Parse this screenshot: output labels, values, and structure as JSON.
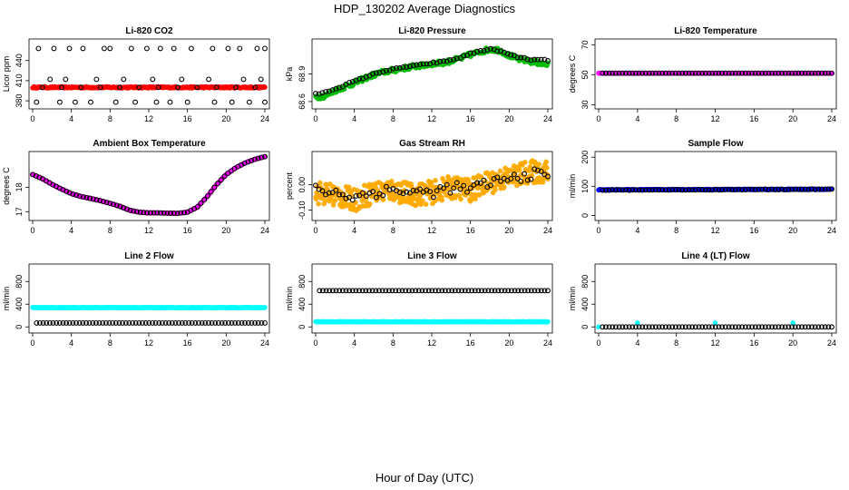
{
  "title": "HDP_130202  Average Diagnostics",
  "xlabel": "Hour of Day (UTC)",
  "chart_data": [
    {
      "type": "scatter",
      "title": "Li-820 CO2",
      "ylabel": "Licor ppm",
      "xlim": [
        0,
        24
      ],
      "xticks": [
        0,
        4,
        8,
        12,
        16,
        20,
        24
      ],
      "ylim": [
        372,
        468
      ],
      "yticks": [
        380,
        410,
        440
      ],
      "series": [
        {
          "color": "#ff0000",
          "filled": true,
          "pattern": "flat",
          "x": [
            0,
            24
          ],
          "y": [
            400,
            400
          ],
          "noise": 1
        },
        {
          "color": "#000000",
          "filled": false,
          "pattern": "scatter-levels",
          "x": [
            0.6,
            2.2,
            3.8,
            5.2,
            7.4,
            8.0,
            10.2,
            11.8,
            13.2,
            14.6,
            16.4,
            18.6,
            20.2,
            21.4,
            23.2,
            24.0,
            1.0,
            3.0,
            5.0,
            7.0,
            9.0,
            11.0,
            13.0,
            15.0,
            17.0,
            19.0,
            21.0,
            23.0,
            1.8,
            3.4,
            6.6,
            9.4,
            12.4,
            15.4,
            18.2,
            21.8,
            23.6,
            0.4,
            2.8,
            4.4,
            6.0,
            8.6,
            10.6,
            12.8,
            14.2,
            16.0,
            18.8,
            20.6,
            22.4,
            24.0
          ],
          "y": [
            458,
            458,
            458,
            458,
            458,
            458,
            458,
            458,
            458,
            458,
            458,
            458,
            458,
            458,
            458,
            458,
            400,
            400,
            400,
            400,
            400,
            400,
            400,
            400,
            400,
            400,
            400,
            400,
            412,
            412,
            412,
            412,
            412,
            412,
            412,
            412,
            412,
            378,
            378,
            378,
            378,
            378,
            378,
            378,
            378,
            378,
            378,
            378,
            378,
            378
          ],
          "noise": 0
        }
      ]
    },
    {
      "type": "scatter",
      "title": "Li-820 Pressure",
      "ylabel": "kPa",
      "xlim": [
        0,
        24
      ],
      "xticks": [
        0,
        4,
        8,
        12,
        16,
        20,
        24
      ],
      "ylim": [
        68.55,
        69.25
      ],
      "yticks": [
        68.6,
        68.9
      ],
      "series": [
        {
          "color": "#00bb00",
          "filled": true,
          "pattern": "curve",
          "x": [
            0,
            1,
            2,
            3,
            4,
            5,
            6,
            7,
            8,
            9,
            10,
            11,
            12,
            13,
            14,
            15,
            16,
            17,
            18,
            19,
            20,
            21,
            22,
            23,
            24
          ],
          "y": [
            68.65,
            68.66,
            68.72,
            68.76,
            68.8,
            68.85,
            68.89,
            68.92,
            68.94,
            68.96,
            68.98,
            68.99,
            69.01,
            69.02,
            69.04,
            69.07,
            69.11,
            69.14,
            69.17,
            69.16,
            69.1,
            69.06,
            69.04,
            69.02,
            69.0
          ],
          "noise": 0.025
        },
        {
          "color": "#000000",
          "filled": false,
          "pattern": "curve",
          "x": [
            0,
            1,
            2,
            3,
            4,
            5,
            6,
            7,
            8,
            9,
            10,
            11,
            12,
            13,
            14,
            15,
            16,
            17,
            18,
            19,
            20,
            21,
            22,
            23,
            24
          ],
          "y": [
            68.68,
            68.7,
            68.74,
            68.78,
            68.82,
            68.86,
            68.9,
            68.93,
            68.95,
            68.97,
            68.99,
            69.0,
            69.02,
            69.03,
            69.05,
            69.08,
            69.12,
            69.15,
            69.17,
            69.15,
            69.11,
            69.08,
            69.06,
            69.05,
            69.05
          ],
          "noise": 0.008
        }
      ]
    },
    {
      "type": "scatter",
      "title": "Li-820 Temperature",
      "ylabel": "degrees C",
      "xlim": [
        0,
        24
      ],
      "xticks": [
        0,
        4,
        8,
        12,
        16,
        20,
        24
      ],
      "ylim": [
        29,
        72
      ],
      "yticks": [
        30,
        50,
        70
      ],
      "series": [
        {
          "color": "#ff00ff",
          "filled": true,
          "pattern": "flat",
          "x": [
            0,
            24
          ],
          "y": [
            51,
            51
          ],
          "noise": 0
        },
        {
          "color": "#000000",
          "filled": false,
          "pattern": "flat",
          "x": [
            0.4,
            24
          ],
          "y": [
            51,
            51
          ],
          "noise": 0
        }
      ]
    },
    {
      "type": "scatter",
      "title": "Ambient Box Temperature",
      "ylabel": "degrees C",
      "xlim": [
        0,
        24
      ],
      "xticks": [
        0,
        4,
        8,
        12,
        16,
        20,
        24
      ],
      "ylim": [
        16.75,
        19.35
      ],
      "yticks": [
        17.0,
        18.0
      ],
      "series": [
        {
          "color": "#ff00ff",
          "filled": true,
          "pattern": "curve",
          "x": [
            0,
            1,
            2,
            3,
            4,
            5,
            6,
            7,
            8,
            9,
            10,
            11,
            12,
            13,
            14,
            15,
            16,
            17,
            18,
            19,
            20,
            21,
            22,
            23,
            24
          ],
          "y": [
            18.52,
            18.35,
            18.12,
            17.92,
            17.74,
            17.62,
            17.54,
            17.45,
            17.34,
            17.22,
            17.06,
            16.98,
            16.95,
            16.95,
            16.94,
            16.93,
            16.98,
            17.18,
            17.6,
            18.1,
            18.52,
            18.8,
            19.0,
            19.15,
            19.25
          ],
          "noise": 0
        },
        {
          "color": "#000000",
          "filled": false,
          "pattern": "curve",
          "x": [
            0,
            1,
            2,
            3,
            4,
            5,
            6,
            7,
            8,
            9,
            10,
            11,
            12,
            13,
            14,
            15,
            16,
            17,
            18,
            19,
            20,
            21,
            22,
            23,
            24
          ],
          "y": [
            18.52,
            18.35,
            18.12,
            17.92,
            17.74,
            17.62,
            17.54,
            17.45,
            17.34,
            17.22,
            17.06,
            16.98,
            16.95,
            16.95,
            16.94,
            16.93,
            16.98,
            17.18,
            17.6,
            18.1,
            18.52,
            18.8,
            19.0,
            19.15,
            19.25
          ],
          "noise": 0
        }
      ]
    },
    {
      "type": "scatter",
      "title": "Gas Stream RH",
      "ylabel": "percent",
      "xlim": [
        0,
        24
      ],
      "xticks": [
        0,
        4,
        8,
        12,
        16,
        20,
        24
      ],
      "ylim": [
        -0.13,
        0.12
      ],
      "yticks": [
        -0.1,
        0.0
      ],
      "series": [
        {
          "color": "#ffaa00",
          "filled": true,
          "pattern": "curve",
          "x": [
            0,
            2,
            4,
            6,
            8,
            10,
            12,
            14,
            16,
            18,
            20,
            22,
            24
          ],
          "y": [
            -0.03,
            -0.04,
            -0.06,
            -0.03,
            -0.02,
            -0.04,
            -0.03,
            -0.01,
            -0.02,
            0.01,
            0.03,
            0.05,
            0.05
          ],
          "noise": 0.045
        },
        {
          "color": "#000000",
          "filled": false,
          "pattern": "curve",
          "x": [
            0,
            2,
            4,
            6,
            8,
            10,
            12,
            14,
            16,
            18,
            20,
            22,
            24
          ],
          "y": [
            -0.02,
            -0.03,
            -0.05,
            -0.03,
            -0.02,
            -0.03,
            -0.03,
            -0.01,
            -0.02,
            0.01,
            0.02,
            0.04,
            0.04
          ],
          "noise": 0.022
        }
      ]
    },
    {
      "type": "scatter",
      "title": "Sample Flow",
      "ylabel": "ml/min",
      "xlim": [
        0,
        24
      ],
      "xticks": [
        0,
        4,
        8,
        12,
        16,
        20,
        24
      ],
      "ylim": [
        -8,
        210
      ],
      "yticks": [
        0,
        100,
        200
      ],
      "series": [
        {
          "color": "#0000ff",
          "filled": true,
          "pattern": "flat",
          "x": [
            0,
            24
          ],
          "y": [
            88,
            90
          ],
          "noise": 1
        },
        {
          "color": "#000000",
          "filled": false,
          "pattern": "flat",
          "x": [
            0.4,
            24
          ],
          "y": [
            87,
            90
          ],
          "noise": 1
        }
      ]
    },
    {
      "type": "scatter",
      "title": "Line 2 Flow",
      "ylabel": "ml/min",
      "xlim": [
        0,
        24
      ],
      "xticks": [
        0,
        4,
        8,
        12,
        16,
        20,
        24
      ],
      "ylim": [
        -60,
        1060
      ],
      "yticks": [
        0,
        400,
        800
      ],
      "series": [
        {
          "color": "#00ffff",
          "filled": true,
          "pattern": "flat",
          "x": [
            0,
            24
          ],
          "y": [
            340,
            340
          ],
          "noise": 3
        },
        {
          "color": "#000000",
          "filled": false,
          "pattern": "flat",
          "x": [
            0.4,
            24
          ],
          "y": [
            70,
            70
          ],
          "noise": 0
        }
      ]
    },
    {
      "type": "scatter",
      "title": "Line 3 Flow",
      "ylabel": "ml/min",
      "xlim": [
        0,
        24
      ],
      "xticks": [
        0,
        4,
        8,
        12,
        16,
        20,
        24
      ],
      "ylim": [
        -60,
        1060
      ],
      "yticks": [
        0,
        400,
        800
      ],
      "series": [
        {
          "color": "#00ffff",
          "filled": true,
          "pattern": "flat",
          "x": [
            0,
            24
          ],
          "y": [
            90,
            90
          ],
          "noise": 3
        },
        {
          "color": "#000000",
          "filled": false,
          "pattern": "flat",
          "x": [
            0.4,
            24
          ],
          "y": [
            640,
            640
          ],
          "noise": 0
        }
      ]
    },
    {
      "type": "scatter",
      "title": "Line 4 (LT) Flow",
      "ylabel": "ml/min",
      "xlim": [
        0,
        24
      ],
      "xticks": [
        0,
        4,
        8,
        12,
        16,
        20,
        24
      ],
      "ylim": [
        -60,
        1060
      ],
      "yticks": [
        0,
        400,
        800
      ],
      "series": [
        {
          "color": "#00ffff",
          "filled": true,
          "pattern": "points",
          "x": [
            0,
            4,
            12,
            20
          ],
          "y": [
            0,
            70,
            70,
            70
          ],
          "noise": 0
        },
        {
          "color": "#000000",
          "filled": false,
          "pattern": "flat",
          "x": [
            0.4,
            24
          ],
          "y": [
            0,
            0
          ],
          "noise": 0
        }
      ]
    }
  ]
}
